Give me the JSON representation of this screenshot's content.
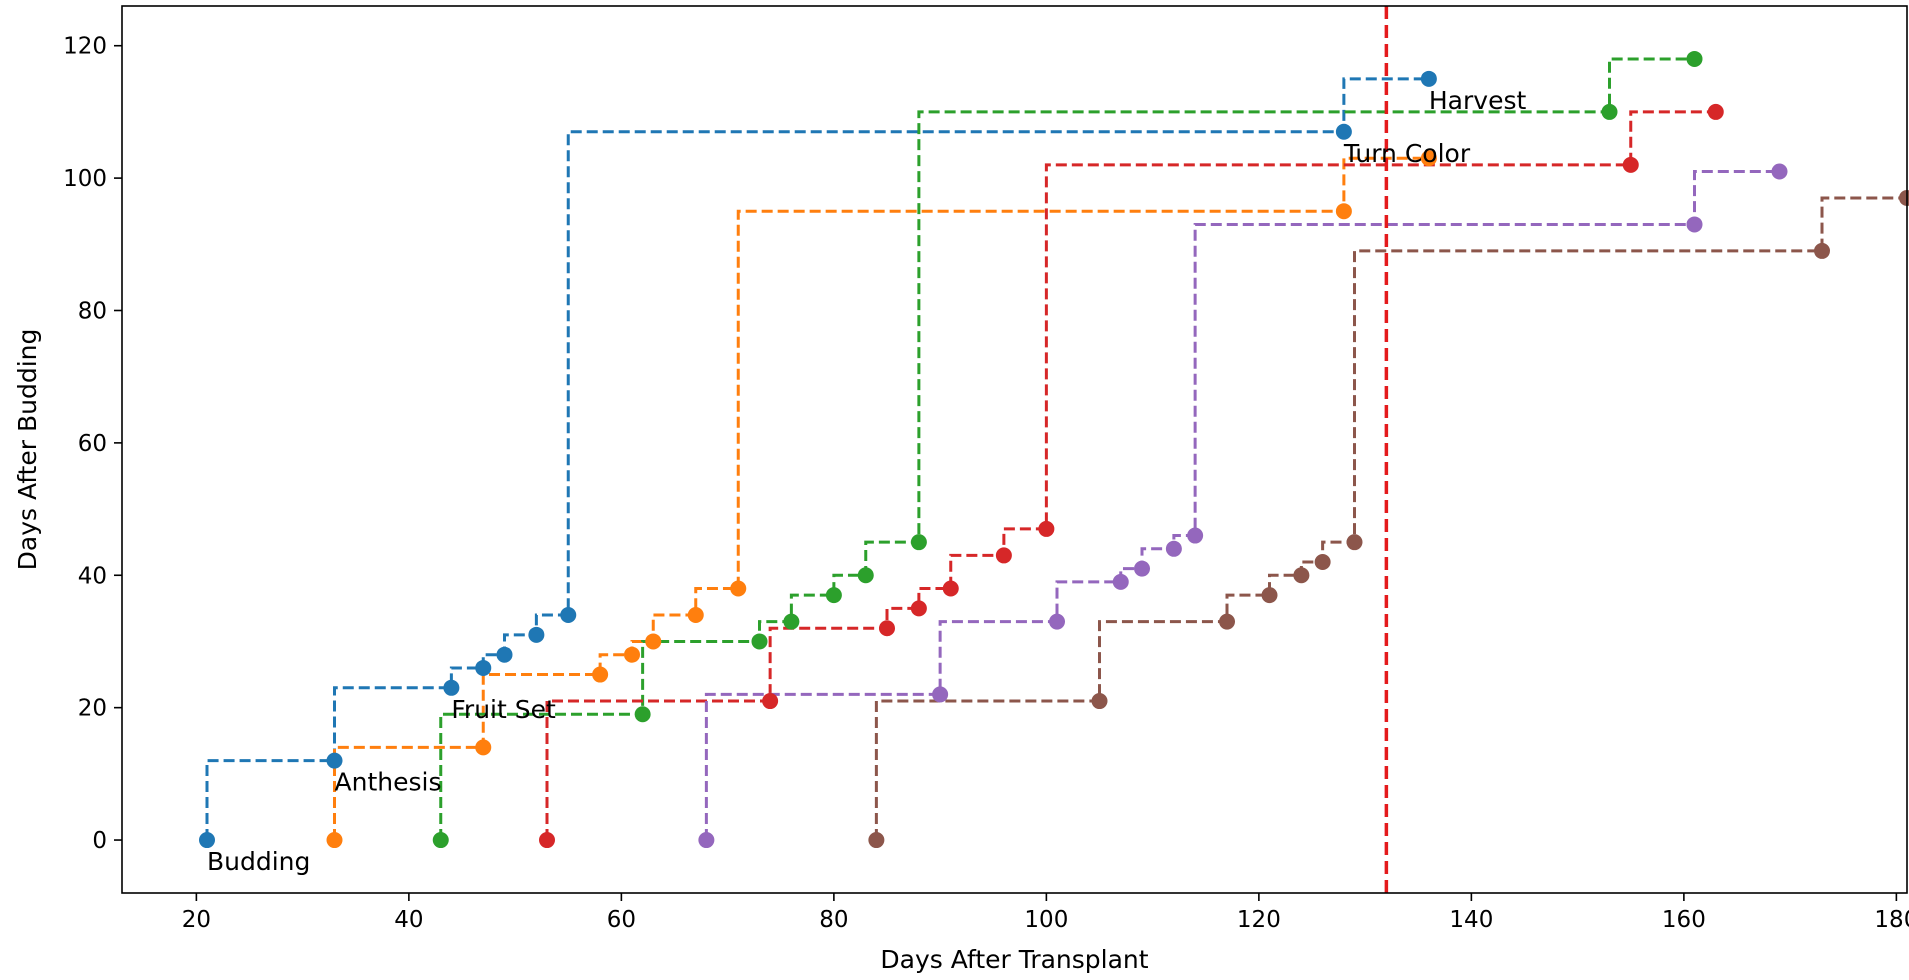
{
  "chart_data": {
    "type": "line",
    "style": "step-post, dashed lines with circular markers",
    "xlabel": "Days After Transplant",
    "ylabel": "Days After Budding",
    "xlim": [
      13,
      181
    ],
    "ylim": [
      -8,
      126
    ],
    "xticks": [
      20,
      40,
      60,
      80,
      100,
      120,
      140,
      160,
      180
    ],
    "yticks": [
      0,
      20,
      40,
      60,
      80,
      100,
      120
    ],
    "grid": false,
    "legend": "none",
    "series": [
      {
        "color": "#1f77b4",
        "points": [
          [
            21,
            0
          ],
          [
            33,
            12
          ],
          [
            44,
            23
          ],
          [
            47,
            26
          ],
          [
            49,
            28
          ],
          [
            52,
            31
          ],
          [
            55,
            34
          ],
          [
            128,
            107
          ],
          [
            136,
            115
          ]
        ]
      },
      {
        "color": "#ff7f0e",
        "points": [
          [
            33,
            0
          ],
          [
            47,
            14
          ],
          [
            58,
            25
          ],
          [
            61,
            28
          ],
          [
            63,
            30
          ],
          [
            67,
            34
          ],
          [
            71,
            38
          ],
          [
            128,
            95
          ],
          [
            136,
            103
          ]
        ]
      },
      {
        "color": "#2ca02c",
        "points": [
          [
            43,
            0
          ],
          [
            62,
            19
          ],
          [
            73,
            30
          ],
          [
            76,
            33
          ],
          [
            80,
            37
          ],
          [
            83,
            40
          ],
          [
            88,
            45
          ],
          [
            153,
            110
          ],
          [
            161,
            118
          ]
        ]
      },
      {
        "color": "#d62728",
        "points": [
          [
            53,
            0
          ],
          [
            74,
            21
          ],
          [
            85,
            32
          ],
          [
            88,
            35
          ],
          [
            91,
            38
          ],
          [
            96,
            43
          ],
          [
            100,
            47
          ],
          [
            155,
            102
          ],
          [
            163,
            110
          ]
        ]
      },
      {
        "color": "#9467bd",
        "points": [
          [
            68,
            0
          ],
          [
            90,
            22
          ],
          [
            101,
            33
          ],
          [
            107,
            39
          ],
          [
            109,
            41
          ],
          [
            112,
            44
          ],
          [
            114,
            46
          ],
          [
            161,
            93
          ],
          [
            169,
            101
          ]
        ]
      },
      {
        "color": "#8c564b",
        "points": [
          [
            84,
            0
          ],
          [
            105,
            21
          ],
          [
            117,
            33
          ],
          [
            121,
            37
          ],
          [
            124,
            40
          ],
          [
            126,
            42
          ],
          [
            129,
            45
          ],
          [
            173,
            89
          ],
          [
            181,
            97
          ]
        ]
      }
    ],
    "annotations": [
      {
        "text": "Budding",
        "x": 21,
        "y": 0
      },
      {
        "text": "Anthesis",
        "x": 33,
        "y": 12
      },
      {
        "text": "Fruit Set",
        "x": 44,
        "y": 23
      },
      {
        "text": "Turn Color",
        "x": 128,
        "y": 107
      },
      {
        "text": "Harvest",
        "x": 136,
        "y": 115
      }
    ],
    "vline": {
      "x": 132,
      "color": "#e41a1c",
      "style": "dashed"
    }
  }
}
